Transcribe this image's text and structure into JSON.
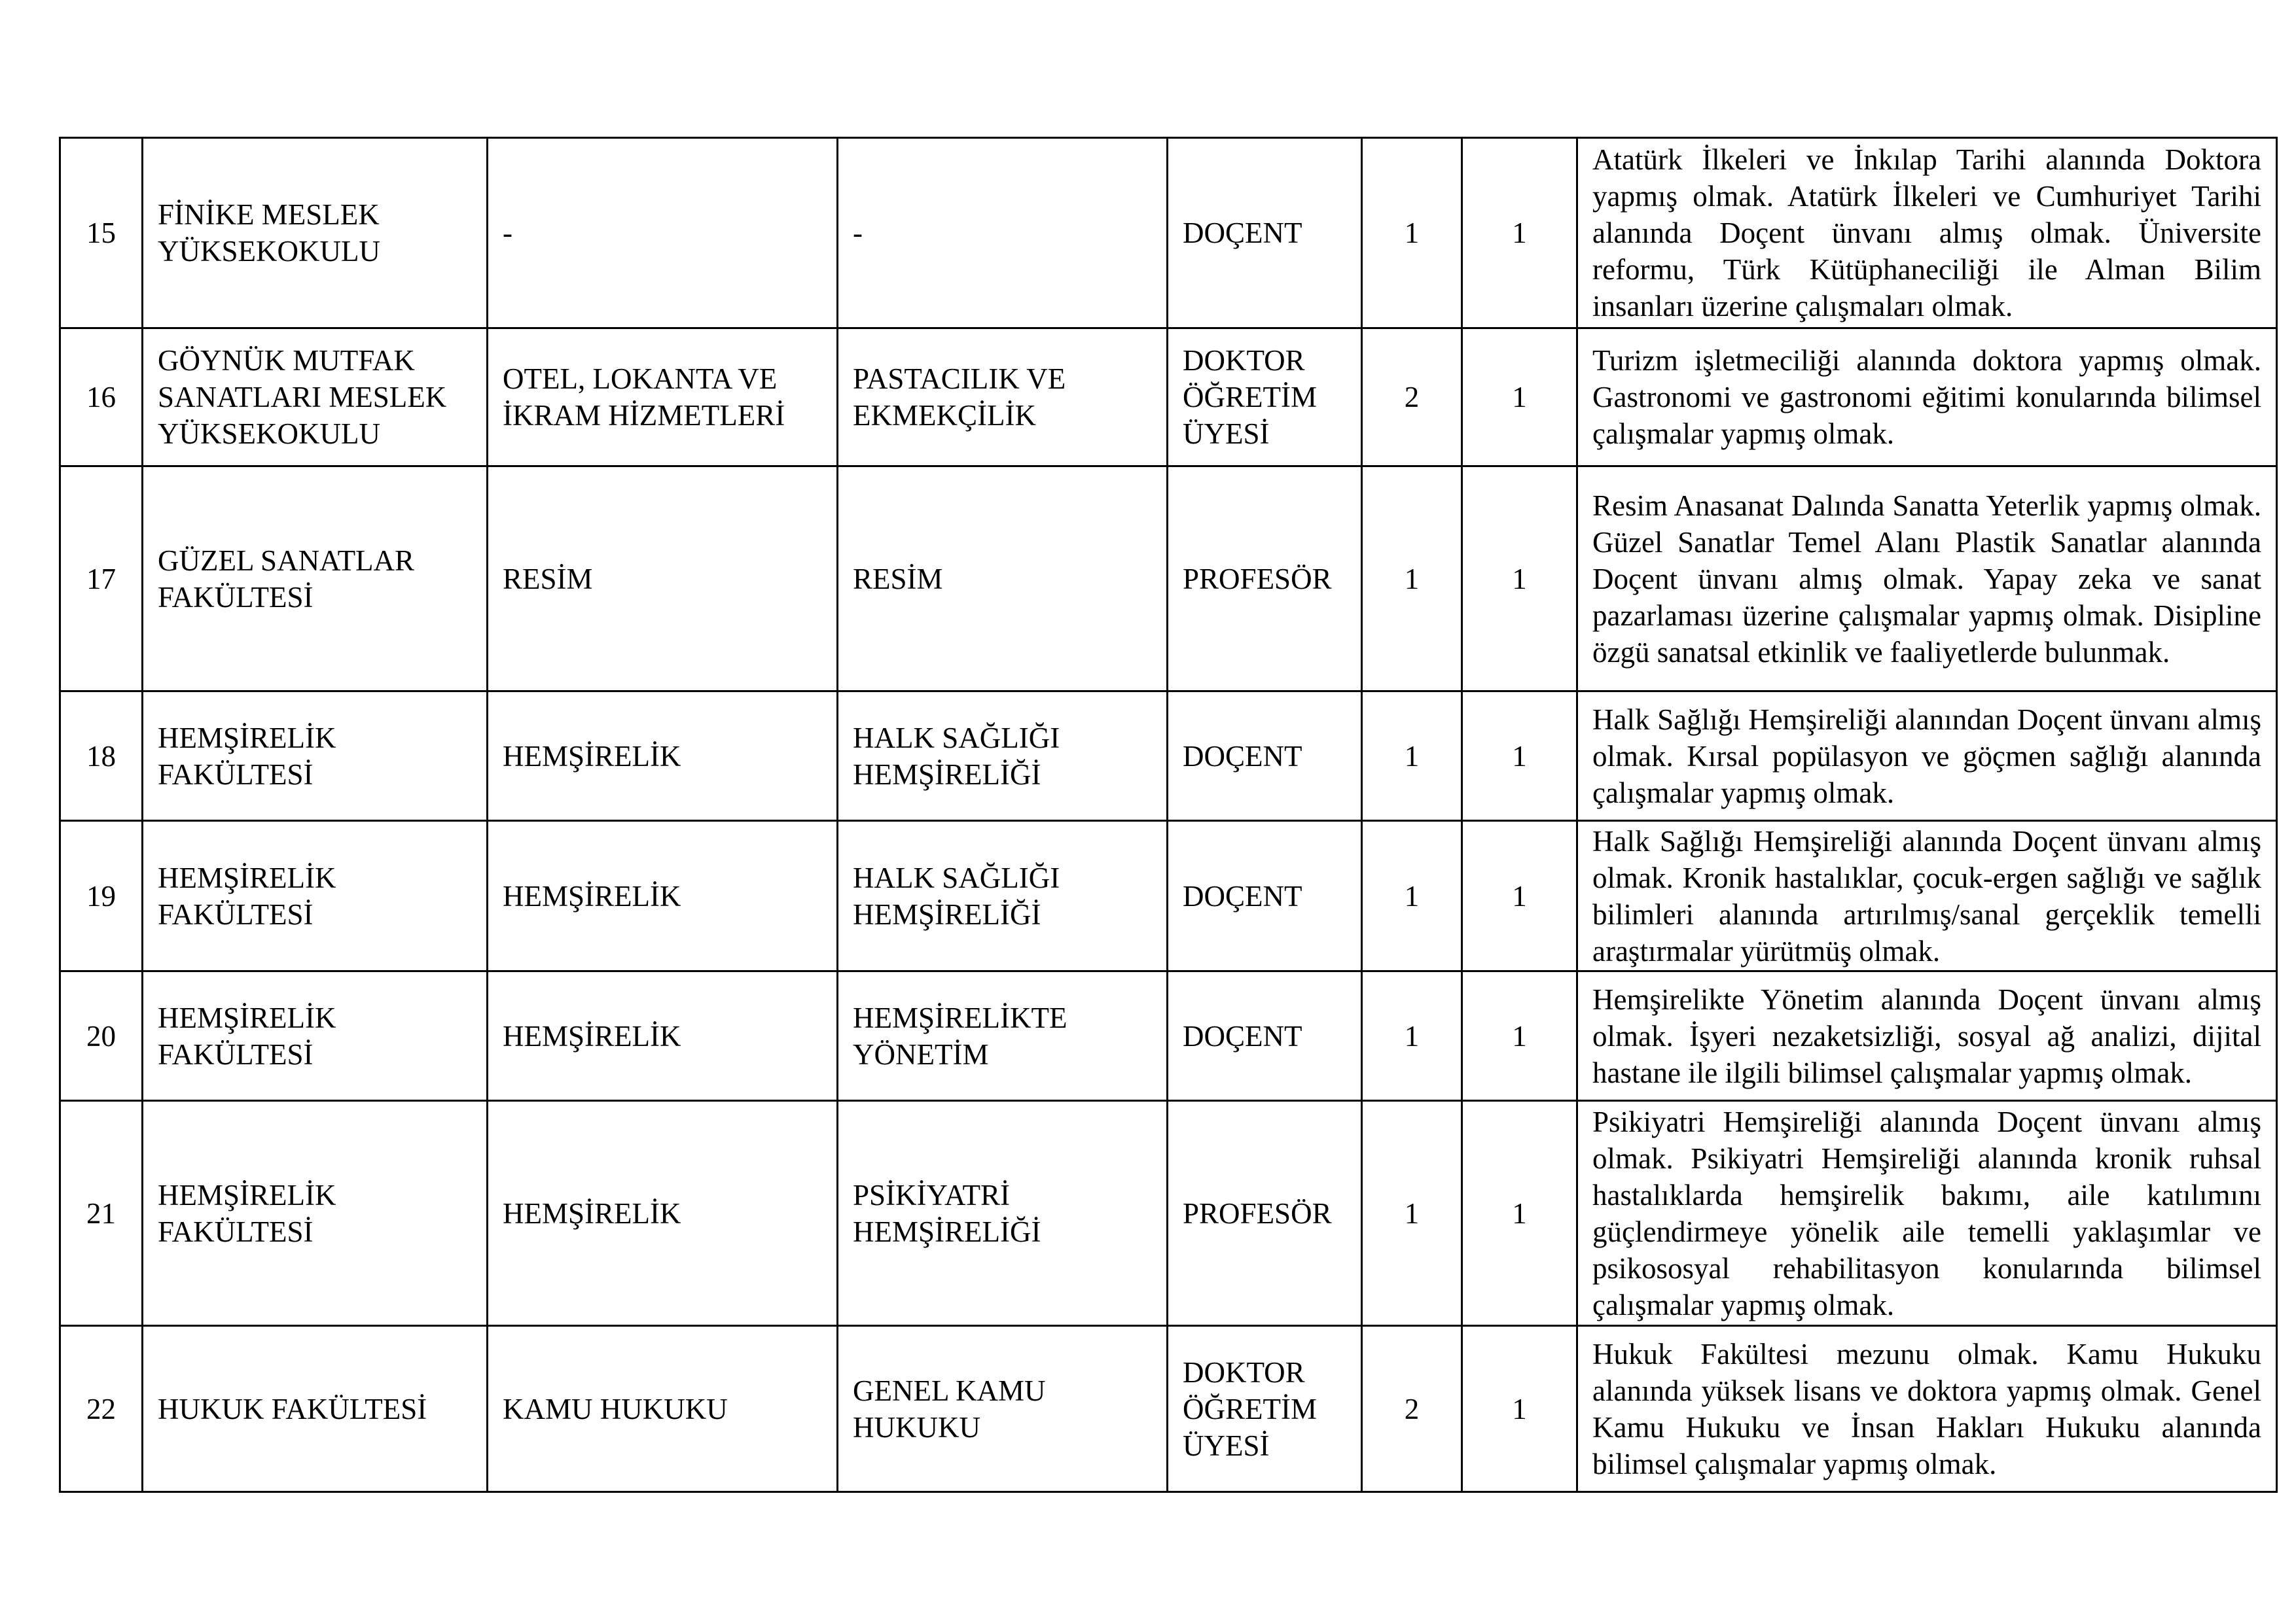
{
  "rows": [
    {
      "no": "15",
      "unit": "FİNİKE MESLEK YÜKSEKOKULU",
      "dept": "-",
      "field": "-",
      "title": "DOÇENT",
      "degree": "1",
      "count": "1",
      "desc": "Atatürk İlkeleri ve İnkılap Tarihi alanında Doktora yapmış olmak. Atatürk İlkeleri ve Cumhuriyet Tarihi alanında Doçent ünvanı almış olmak. Üniversite reformu, Türk Kütüphaneciliği ile Alman Bilim insanları üzerine çalışmaları olmak."
    },
    {
      "no": "16",
      "unit": "GÖYNÜK MUTFAK SANATLARI MESLEK YÜKSEKOKULU",
      "dept": "OTEL, LOKANTA VE İKRAM HİZMETLERİ",
      "field": "PASTACILIK VE EKMEKÇİLİK",
      "title": "DOKTOR ÖĞRETİM ÜYESİ",
      "degree": "2",
      "count": "1",
      "desc": "Turizm işletmeciliği alanında doktora yapmış olmak. Gastronomi ve gastronomi eğitimi konularında bilimsel çalışmalar yapmış olmak."
    },
    {
      "no": "17",
      "unit": "GÜZEL SANATLAR FAKÜLTESİ",
      "dept": "RESİM",
      "field": "RESİM",
      "title": "PROFESÖR",
      "degree": "1",
      "count": "1",
      "desc": "Resim Anasanat Dalında Sanatta Yeterlik yapmış olmak. Güzel Sanatlar Temel Alanı Plastik Sanatlar alanında Doçent ünvanı almış olmak. Yapay zeka ve sanat pazarlaması üzerine çalışmalar yapmış olmak. Disipline özgü sanatsal etkinlik ve faaliyetlerde bulunmak."
    },
    {
      "no": "18",
      "unit": "HEMŞİRELİK FAKÜLTESİ",
      "dept": "HEMŞİRELİK",
      "field": "HALK SAĞLIĞI HEMŞİRELİĞİ",
      "title": "DOÇENT",
      "degree": "1",
      "count": "1",
      "desc": "Halk Sağlığı Hemşireliği alanından Doçent ünvanı almış olmak. Kırsal popülasyon ve göçmen sağlığı alanında çalışmalar yapmış olmak."
    },
    {
      "no": "19",
      "unit": "HEMŞİRELİK FAKÜLTESİ",
      "dept": "HEMŞİRELİK",
      "field": "HALK SAĞLIĞI HEMŞİRELİĞİ",
      "title": "DOÇENT",
      "degree": "1",
      "count": "1",
      "desc": "Halk Sağlığı Hemşireliği alanında Doçent ünvanı almış olmak. Kronik hastalıklar, çocuk-ergen sağlığı ve sağlık bilimleri alanında artırılmış/sanal gerçeklik temelli araştırmalar yürütmüş olmak."
    },
    {
      "no": "20",
      "unit": "HEMŞİRELİK FAKÜLTESİ",
      "dept": "HEMŞİRELİK",
      "field": "HEMŞİRELİKTE YÖNETİM",
      "title": "DOÇENT",
      "degree": "1",
      "count": "1",
      "desc": "Hemşirelikte Yönetim alanında Doçent ünvanı almış olmak. İşyeri nezaketsizliği, sosyal ağ analizi, dijital hastane ile ilgili bilimsel çalışmalar yapmış olmak."
    },
    {
      "no": "21",
      "unit": "HEMŞİRELİK FAKÜLTESİ",
      "dept": "HEMŞİRELİK",
      "field": "PSİKİYATRİ HEMŞİRELİĞİ",
      "title": "PROFESÖR",
      "degree": "1",
      "count": "1",
      "desc": "Psikiyatri Hemşireliği alanında Doçent ünvanı almış olmak. Psikiyatri Hemşireliği alanında kronik ruhsal hastalıklarda hemşirelik bakımı, aile katılımını güçlendirmeye yönelik aile temelli yaklaşımlar ve psikososyal rehabilitasyon konularında bilimsel çalışmalar yapmış olmak."
    },
    {
      "no": "22",
      "unit": "HUKUK FAKÜLTESİ",
      "dept": "KAMU HUKUKU",
      "field": "GENEL KAMU HUKUKU",
      "title": "DOKTOR ÖĞRETİM ÜYESİ",
      "degree": "2",
      "count": "1",
      "desc": "Hukuk Fakültesi mezunu olmak. Kamu Hukuku alanında yüksek lisans ve doktora yapmış olmak. Genel Kamu Hukuku ve İnsan Hakları Hukuku alanında bilimsel çalışmalar yapmış olmak."
    }
  ]
}
